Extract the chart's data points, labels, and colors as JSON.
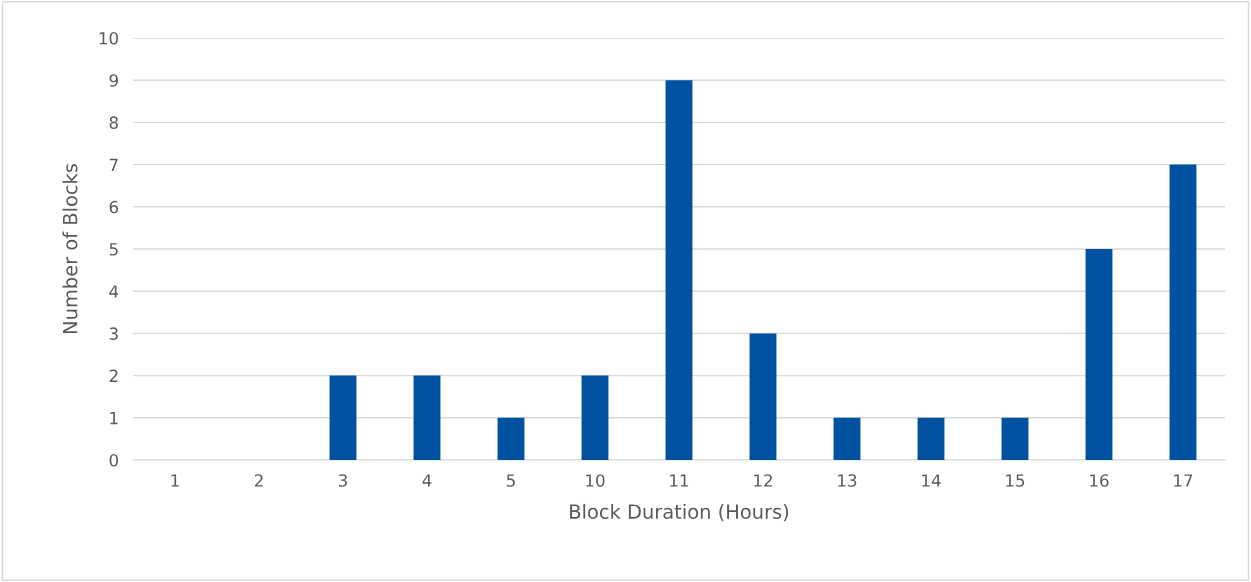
{
  "chart_data": {
    "type": "bar",
    "xlabel": "Block Duration (Hours)",
    "ylabel": "Number of Blocks",
    "categories": [
      "1",
      "2",
      "3",
      "4",
      "5",
      "10",
      "11",
      "12",
      "13",
      "14",
      "15",
      "16",
      "17"
    ],
    "values": [
      0,
      0,
      2,
      2,
      1,
      2,
      9,
      3,
      1,
      1,
      1,
      5,
      7
    ],
    "color": "#0052a0",
    "ylim": [
      0,
      10
    ],
    "yticks": [
      0,
      1,
      2,
      3,
      4,
      5,
      6,
      7,
      8,
      9,
      10
    ],
    "grid": "y",
    "legend": false
  }
}
